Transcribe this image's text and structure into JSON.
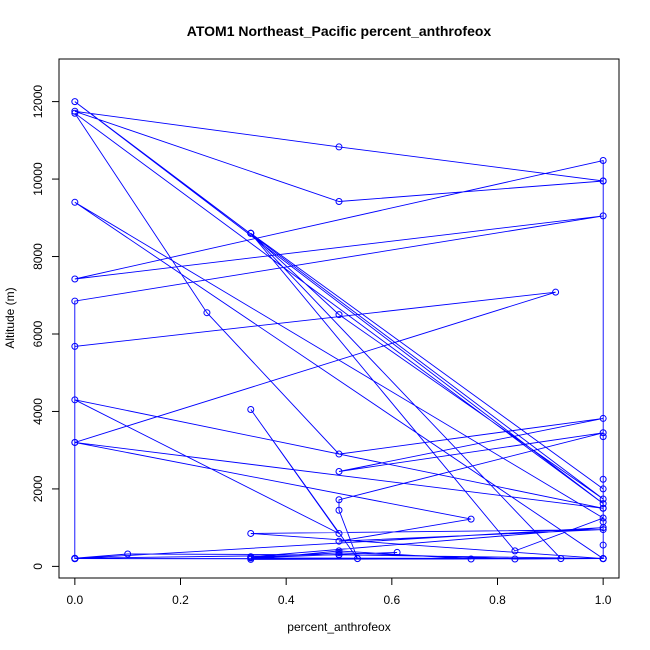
{
  "chart_data": {
    "type": "line",
    "title": "ATOM1 Northeast_Pacific percent_anthrofeox",
    "xlabel": "percent_anthrofeox",
    "ylabel": "Altitude (m)",
    "xlim": [
      -0.03,
      1.03
    ],
    "ylim": [
      -300,
      13100
    ],
    "xticks": [
      0.0,
      0.2,
      0.4,
      0.6,
      0.8,
      1.0
    ],
    "xtick_labels": [
      "0.0",
      "0.2",
      "0.4",
      "0.6",
      "0.8",
      "1.0"
    ],
    "yticks": [
      0,
      2000,
      4000,
      6000,
      8000,
      10000,
      12000
    ],
    "ytick_labels": [
      "0",
      "2000",
      "4000",
      "6000",
      "8000",
      "10000",
      "12000"
    ],
    "grid": false,
    "series": [
      {
        "color": "#0000ff",
        "marker": "open-circle",
        "points": [
          [
            0.0,
            200
          ],
          [
            1.0,
            200
          ],
          [
            0.333,
            180
          ],
          [
            0.5,
            400
          ],
          [
            0.75,
            190
          ],
          [
            0.0,
            200
          ],
          [
            1.0,
            1000
          ],
          [
            0.333,
            250
          ],
          [
            0.5,
            300
          ],
          [
            0.0,
            210
          ],
          [
            0.1,
            320
          ],
          [
            0.5,
            300
          ],
          [
            1.0,
            200
          ],
          [
            0.333,
            220
          ],
          [
            0.61,
            360
          ],
          [
            0.333,
            230
          ],
          [
            0.5,
            350
          ],
          [
            0.833,
            190
          ],
          [
            1.0,
            200
          ],
          [
            0.333,
            850
          ],
          [
            1.0,
            950
          ],
          [
            0.5,
            650
          ],
          [
            0.75,
            1220
          ],
          [
            0.0,
            3200
          ],
          [
            1.0,
            1500
          ],
          [
            0.0,
            4300
          ],
          [
            0.5,
            850
          ],
          [
            0.333,
            4050
          ],
          [
            0.535,
            200
          ],
          [
            0.5,
            1450
          ],
          [
            0.5,
            1720
          ],
          [
            1.0,
            3450
          ],
          [
            0.5,
            2450
          ],
          [
            1.0,
            3820
          ],
          [
            0.5,
            2900
          ],
          [
            0.25,
            6550
          ],
          [
            0.0,
            11700
          ],
          [
            1.0,
            1620
          ],
          [
            0.0,
            12000
          ],
          [
            1.0,
            1740
          ],
          [
            0.5,
            6500
          ],
          [
            0.333,
            8600
          ],
          [
            1.0,
            2000
          ],
          [
            0.333,
            8600
          ],
          [
            0.92,
            200
          ],
          [
            0.333,
            8600
          ],
          [
            0.833,
            400
          ],
          [
            1.0,
            1250
          ],
          [
            0.0,
            9400
          ],
          [
            1.0,
            200
          ],
          [
            0.0,
            200
          ],
          [
            0.0,
            5680
          ],
          [
            0.91,
            7080
          ],
          [
            0.0,
            3200
          ],
          [
            0.0,
            200
          ],
          [
            0.0,
            6850
          ],
          [
            1.0,
            9050
          ],
          [
            0.0,
            7420
          ],
          [
            1.0,
            10480
          ],
          [
            1.0,
            9950
          ],
          [
            0.5,
            10830
          ],
          [
            0.0,
            11750
          ],
          [
            0.5,
            9420
          ],
          [
            1.0,
            9950
          ],
          [
            1.0,
            3350
          ],
          [
            1.0,
            2250
          ],
          [
            1.0,
            1500
          ],
          [
            1.0,
            1150
          ],
          [
            1.0,
            550
          ],
          [
            1.0,
            200
          ]
        ]
      }
    ]
  }
}
